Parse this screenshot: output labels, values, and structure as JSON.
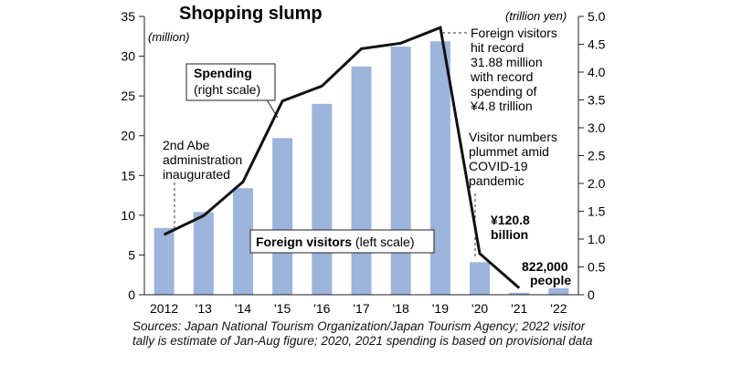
{
  "chart_data": {
    "type": "bar+line",
    "title": "Shopping slump",
    "categories": [
      "2012",
      "'13",
      "'14",
      "'15",
      "'16",
      "'17",
      "'18",
      "'19",
      "'20",
      "'21",
      "'22"
    ],
    "left_axis": {
      "unit": "(million)",
      "ylim": [
        0,
        35
      ],
      "ticks": [
        0,
        5,
        10,
        15,
        20,
        25,
        30,
        35
      ]
    },
    "right_axis": {
      "unit": "(trillion yen)",
      "ylim": [
        0,
        5.0
      ],
      "ticks": [
        "0",
        "0.5",
        "1.0",
        "1.5",
        "2.0",
        "2.5",
        "3.0",
        "3.5",
        "4.0",
        "4.5",
        "5.0"
      ]
    },
    "series": [
      {
        "name": "Foreign visitors",
        "axis": "left",
        "kind": "bar",
        "color": "#9db4dc",
        "values": [
          8.4,
          10.4,
          13.4,
          19.7,
          24.0,
          28.7,
          31.2,
          31.88,
          4.1,
          0.25,
          0.822
        ]
      },
      {
        "name": "Spending",
        "axis": "right",
        "kind": "line",
        "color": "#111111",
        "values": [
          1.08,
          1.42,
          2.03,
          3.48,
          3.75,
          4.42,
          4.52,
          4.8,
          0.74,
          0.1208,
          null
        ]
      }
    ],
    "grid": false,
    "legend_labels": {
      "visitors": {
        "bold": "Foreign visitors",
        "rest": " (left scale)"
      },
      "spending": {
        "bold": "Spending",
        "rest": "(right scale)"
      }
    },
    "annotations": {
      "abe": [
        "2nd Abe",
        "administration",
        "inaugurated"
      ],
      "record": [
        "Foreign visitors",
        "hit record",
        "31.88 million",
        "with record",
        "spending of",
        "¥4.8 trillion"
      ],
      "covid": [
        "Visitor numbers",
        "plummet amid",
        "COVID-19",
        "pandemic"
      ],
      "yen": [
        "¥120.8",
        "billion"
      ],
      "people": [
        "822,000",
        "people"
      ]
    }
  },
  "source": "Sources: Japan National Tourism Organization/Japan Tourism Agency; 2022 visitor tally is estimate of Jan-Aug figure; 2020, 2021 spending is based on provisional data"
}
